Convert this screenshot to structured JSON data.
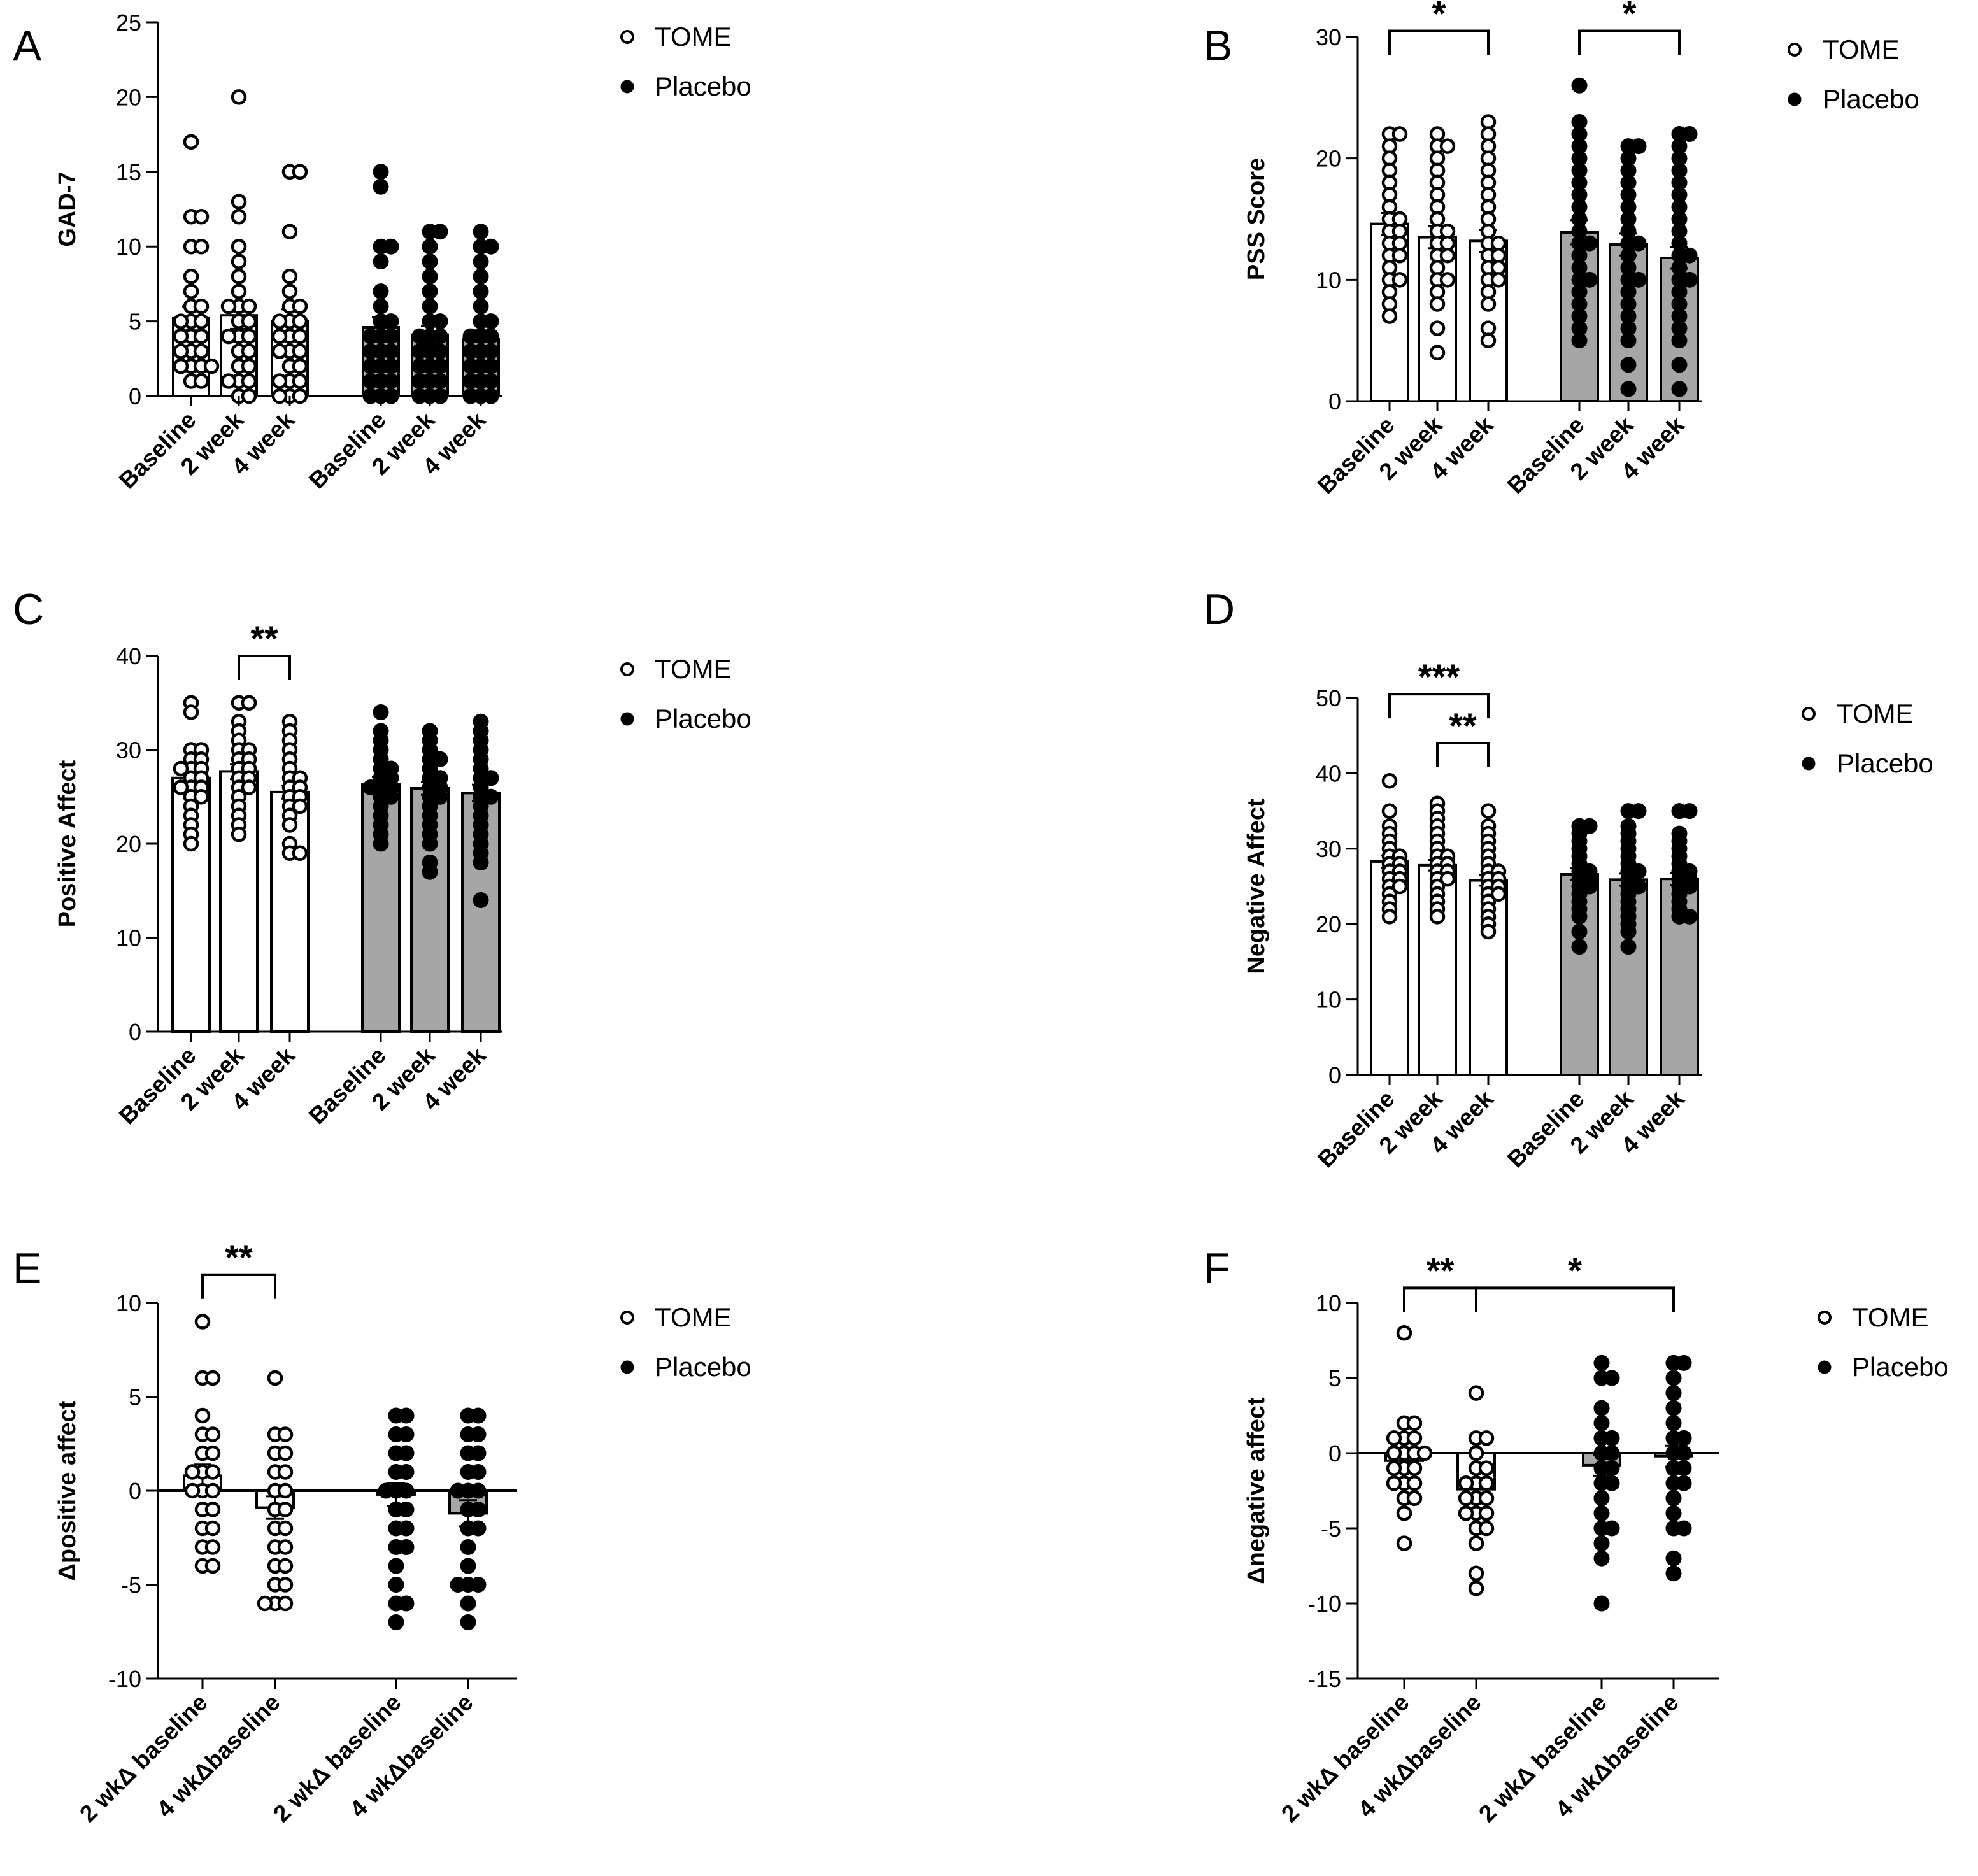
{
  "colors": {
    "tome_bar": "#ffffff",
    "placebo_bar": "#a6a6a6",
    "ink": "#000000"
  },
  "legend": {
    "tome": "TOME",
    "placebo": "Placebo"
  },
  "chart_data": [
    {
      "id": "A",
      "panel": "A",
      "type": "bar",
      "ylabel": "GAD-7",
      "ylim": [
        0,
        25
      ],
      "yticks": [
        0,
        5,
        10,
        15,
        20,
        25
      ],
      "categories": [
        "Baseline",
        "2 week",
        "4 week",
        "Baseline",
        "2 week",
        "4 week"
      ],
      "groups": [
        "TOME",
        "TOME",
        "TOME",
        "Placebo",
        "Placebo",
        "Placebo"
      ],
      "means": [
        5.2,
        5.4,
        5.0,
        4.6,
        4.1,
        3.8
      ],
      "sem": [
        0.8,
        0.9,
        0.8,
        0.7,
        0.6,
        0.6
      ],
      "points": [
        [
          17,
          12,
          12,
          10,
          10,
          8,
          7,
          6,
          6,
          5,
          5,
          5,
          4,
          4,
          4,
          3,
          3,
          3,
          2,
          2,
          2,
          2,
          1,
          1
        ],
        [
          20,
          13,
          12,
          10,
          9,
          8,
          7,
          6,
          6,
          6,
          5,
          5,
          4,
          4,
          4,
          3,
          3,
          2,
          2,
          1,
          1,
          1,
          0,
          0
        ],
        [
          15,
          15,
          11,
          8,
          7,
          6,
          6,
          5,
          5,
          5,
          4,
          4,
          4,
          3,
          3,
          3,
          2,
          2,
          1,
          1,
          1,
          0,
          0,
          0
        ],
        [
          15,
          14,
          10,
          10,
          9,
          7,
          6,
          5,
          5,
          4,
          4,
          4,
          3,
          3,
          3,
          2,
          2,
          2,
          1,
          1,
          1,
          0,
          0,
          0
        ],
        [
          11,
          11,
          10,
          9,
          8,
          7,
          6,
          5,
          5,
          4,
          4,
          4,
          3,
          3,
          3,
          2,
          2,
          2,
          1,
          1,
          1,
          0,
          0,
          0
        ],
        [
          11,
          10,
          10,
          9,
          8,
          7,
          6,
          5,
          5,
          4,
          4,
          4,
          3,
          3,
          3,
          2,
          2,
          2,
          1,
          1,
          1,
          0,
          0,
          0
        ]
      ],
      "annotations": []
    },
    {
      "id": "B",
      "panel": "B",
      "type": "bar",
      "ylabel": "PSS Score",
      "ylim": [
        0,
        30
      ],
      "yticks": [
        0,
        10,
        20,
        30
      ],
      "categories": [
        "Baseline",
        "2 week",
        "4 week",
        "Baseline",
        "2 week",
        "4 week"
      ],
      "groups": [
        "TOME",
        "TOME",
        "TOME",
        "Placebo",
        "Placebo",
        "Placebo"
      ],
      "means": [
        14.6,
        13.5,
        13.2,
        13.9,
        12.9,
        11.8
      ],
      "sem": [
        0.9,
        0.9,
        0.9,
        1.0,
        0.9,
        0.9
      ],
      "points": [
        [
          22,
          22,
          21,
          20,
          19,
          18,
          17,
          16,
          15,
          15,
          14,
          14,
          13,
          13,
          12,
          12,
          11,
          10,
          10,
          9,
          8,
          7
        ],
        [
          22,
          21,
          21,
          20,
          19,
          18,
          17,
          16,
          15,
          14,
          14,
          13,
          13,
          12,
          12,
          11,
          10,
          10,
          9,
          8,
          6,
          4
        ],
        [
          23,
          22,
          21,
          20,
          19,
          18,
          17,
          16,
          15,
          14,
          13,
          13,
          12,
          12,
          11,
          11,
          10,
          10,
          9,
          8,
          6,
          5
        ],
        [
          26,
          23,
          22,
          21,
          20,
          19,
          18,
          17,
          16,
          15,
          14,
          13,
          13,
          12,
          11,
          10,
          10,
          9,
          8,
          7,
          6,
          5
        ],
        [
          21,
          21,
          20,
          19,
          18,
          17,
          16,
          15,
          14,
          13,
          13,
          12,
          11,
          10,
          10,
          9,
          8,
          7,
          6,
          5,
          3,
          1
        ],
        [
          22,
          22,
          21,
          20,
          19,
          18,
          17,
          16,
          15,
          14,
          13,
          12,
          12,
          11,
          10,
          10,
          9,
          8,
          7,
          6,
          5,
          3,
          1
        ]
      ],
      "annotations": [
        {
          "from": 0,
          "to": 2,
          "label": "*",
          "y": 30.5
        },
        {
          "from": 3,
          "to": 5,
          "label": "*",
          "y": 30.5
        }
      ]
    },
    {
      "id": "C",
      "panel": "C",
      "type": "bar",
      "ylabel": "Positive Affect",
      "ylim": [
        0,
        40
      ],
      "yticks": [
        0,
        10,
        20,
        30,
        40
      ],
      "categories": [
        "Baseline",
        "2 week",
        "4 week",
        "Baseline",
        "2 week",
        "4 week"
      ],
      "groups": [
        "TOME",
        "TOME",
        "TOME",
        "Placebo",
        "Placebo",
        "Placebo"
      ],
      "means": [
        27.0,
        27.7,
        25.5,
        26.3,
        25.9,
        25.4
      ],
      "sem": [
        0.8,
        0.8,
        0.7,
        0.8,
        0.7,
        0.9
      ],
      "points": [
        [
          35,
          34,
          30,
          30,
          29,
          29,
          28,
          28,
          28,
          27,
          27,
          26,
          26,
          26,
          25,
          25,
          24,
          23,
          22,
          21,
          20
        ],
        [
          35,
          35,
          33,
          32,
          31,
          30,
          30,
          29,
          29,
          28,
          28,
          27,
          27,
          26,
          26,
          25,
          24,
          23,
          22,
          21
        ],
        [
          33,
          32,
          31,
          30,
          29,
          28,
          27,
          27,
          26,
          26,
          25,
          25,
          24,
          24,
          23,
          22,
          20,
          19,
          19
        ],
        [
          34,
          32,
          31,
          30,
          29,
          28,
          28,
          27,
          27,
          26,
          26,
          26,
          25,
          25,
          24,
          23,
          22,
          21,
          20
        ],
        [
          32,
          31,
          30,
          29,
          29,
          28,
          27,
          27,
          26,
          26,
          25,
          25,
          24,
          23,
          22,
          21,
          20,
          18,
          17
        ],
        [
          33,
          32,
          31,
          30,
          29,
          28,
          27,
          27,
          26,
          25,
          25,
          24,
          23,
          22,
          21,
          20,
          19,
          18,
          14
        ]
      ],
      "annotations": [
        {
          "from": 1,
          "to": 2,
          "label": "**",
          "y": 40
        }
      ]
    },
    {
      "id": "D",
      "panel": "D",
      "type": "bar",
      "ylabel": "Negative Affect",
      "ylim": [
        0,
        50
      ],
      "yticks": [
        0,
        10,
        20,
        30,
        40,
        50
      ],
      "categories": [
        "Baseline",
        "2 week",
        "4 week",
        "Baseline",
        "2 week",
        "4 week"
      ],
      "groups": [
        "TOME",
        "TOME",
        "TOME",
        "Placebo",
        "Placebo",
        "Placebo"
      ],
      "means": [
        28.3,
        27.8,
        25.8,
        26.6,
        25.9,
        26.0
      ],
      "sem": [
        0.8,
        0.7,
        0.7,
        0.8,
        0.8,
        0.8
      ],
      "points": [
        [
          39,
          35,
          33,
          32,
          31,
          30,
          29,
          29,
          28,
          28,
          27,
          27,
          26,
          26,
          25,
          25,
          24,
          23,
          22,
          21
        ],
        [
          36,
          35,
          34,
          33,
          32,
          31,
          30,
          29,
          29,
          28,
          28,
          27,
          27,
          26,
          26,
          25,
          24,
          23,
          22,
          21
        ],
        [
          35,
          33,
          32,
          31,
          30,
          29,
          28,
          27,
          27,
          26,
          26,
          25,
          25,
          24,
          24,
          23,
          22,
          21,
          20,
          19
        ],
        [
          33,
          33,
          32,
          31,
          30,
          29,
          28,
          27,
          27,
          26,
          26,
          25,
          25,
          24,
          23,
          22,
          21,
          19,
          17
        ],
        [
          35,
          35,
          33,
          32,
          31,
          30,
          29,
          28,
          27,
          27,
          26,
          25,
          25,
          24,
          23,
          22,
          21,
          20,
          19,
          17
        ],
        [
          35,
          35,
          32,
          31,
          30,
          29,
          28,
          27,
          27,
          26,
          26,
          25,
          25,
          24,
          23,
          22,
          21,
          21
        ]
      ],
      "annotations": [
        {
          "from": 0,
          "to": 2,
          "label": "***",
          "y": 50.5
        },
        {
          "from": 1,
          "to": 2,
          "label": "**",
          "y": 44
        }
      ]
    },
    {
      "id": "E",
      "panel": "E",
      "type": "scatter",
      "ylabel": "Δpositive affect",
      "ylim": [
        -10,
        10
      ],
      "yticks": [
        -10,
        -5,
        0,
        5,
        10
      ],
      "categories": [
        "2 wkΔ baseline",
        "4 wkΔbaseline",
        "2 wkΔ baseline",
        "4 wkΔbaseline"
      ],
      "groups": [
        "TOME",
        "TOME",
        "Placebo",
        "Placebo"
      ],
      "means": [
        0.8,
        -0.9,
        -0.2,
        -1.2
      ],
      "sem": [
        0.6,
        0.6,
        0.6,
        0.7
      ],
      "points": [
        [
          9,
          6,
          6,
          4,
          3,
          3,
          2,
          2,
          1,
          1,
          1,
          0,
          0,
          0,
          -1,
          -1,
          -2,
          -2,
          -3,
          -3,
          -4,
          -4
        ],
        [
          6,
          3,
          3,
          2,
          2,
          1,
          1,
          0,
          0,
          -1,
          -1,
          -2,
          -2,
          -3,
          -3,
          -4,
          -4,
          -5,
          -5,
          -6,
          -6,
          -6
        ],
        [
          4,
          4,
          3,
          3,
          2,
          2,
          1,
          1,
          0,
          0,
          0,
          -1,
          -1,
          -2,
          -2,
          -3,
          -3,
          -4,
          -5,
          -6,
          -6,
          -7
        ],
        [
          4,
          4,
          3,
          3,
          2,
          2,
          1,
          1,
          0,
          0,
          0,
          -1,
          -1,
          -2,
          -2,
          -3,
          -4,
          -5,
          -5,
          -5,
          -6,
          -7
        ]
      ],
      "annotations": [
        {
          "from": 0,
          "to": 1,
          "label": "**",
          "y": 11.5
        }
      ]
    },
    {
      "id": "F",
      "panel": "F",
      "type": "scatter",
      "ylabel": "Δnegative affect",
      "ylim": [
        -15,
        10
      ],
      "yticks": [
        -15,
        -10,
        -5,
        0,
        5,
        10
      ],
      "categories": [
        "2 wkΔ baseline",
        "4 wkΔbaseline",
        "2 wkΔ baseline",
        "4 wkΔbaseline"
      ],
      "groups": [
        "TOME",
        "TOME",
        "Placebo",
        "Placebo"
      ],
      "means": [
        -0.5,
        -2.4,
        -0.8,
        -0.2
      ],
      "sem": [
        0.5,
        0.5,
        0.7,
        0.7
      ],
      "points": [
        [
          8,
          2,
          2,
          1,
          1,
          1,
          0,
          0,
          0,
          0,
          -1,
          -1,
          -1,
          -2,
          -2,
          -2,
          -3,
          -3,
          -4,
          -6
        ],
        [
          4,
          1,
          1,
          0,
          -1,
          -1,
          -2,
          -2,
          -2,
          -3,
          -3,
          -3,
          -4,
          -4,
          -4,
          -5,
          -5,
          -6,
          -8,
          -9
        ],
        [
          6,
          5,
          5,
          3,
          2,
          1,
          1,
          0,
          0,
          -1,
          -1,
          -2,
          -2,
          -3,
          -4,
          -5,
          -5,
          -6,
          -7,
          -10
        ],
        [
          6,
          6,
          5,
          4,
          3,
          2,
          1,
          1,
          0,
          0,
          -1,
          -1,
          -2,
          -2,
          -3,
          -4,
          -5,
          -5,
          -7,
          -8
        ]
      ],
      "annotations": [
        {
          "from": 0,
          "to": 1,
          "label": "**",
          "y": 11
        },
        {
          "from": 1,
          "to": 3,
          "label": "*",
          "y": 11
        }
      ]
    }
  ]
}
